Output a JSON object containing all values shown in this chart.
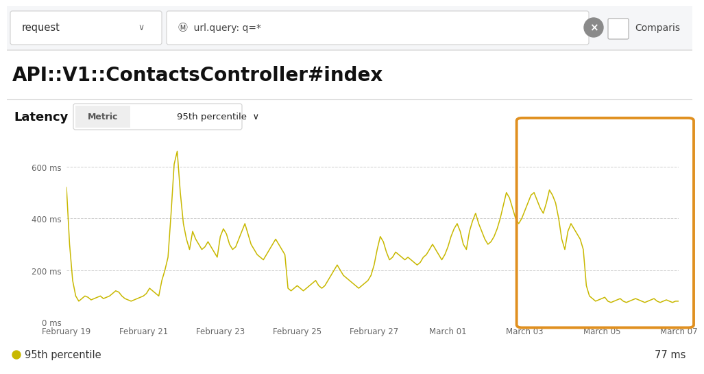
{
  "title": "API::V1::ContactsController#index",
  "legend_label": "95th percentile",
  "legend_value": "77 ms",
  "ylabel_ticks": [
    "0 ms",
    "200 ms",
    "400 ms",
    "600 ms"
  ],
  "ylabel_values": [
    0,
    200,
    400,
    600
  ],
  "ylim": [
    0,
    730
  ],
  "x_tick_labels": [
    "February 19",
    "February 21",
    "February 23",
    "February 25",
    "February 27",
    "March 01",
    "March 03",
    "March 05",
    "March 07"
  ],
  "background_color": "#ffffff",
  "line_color": "#c8b800",
  "grid_color": "#cccccc",
  "highlight_box_color": "#e09020",
  "filter_bg": "#f5f6f8",
  "data_y": [
    520,
    300,
    160,
    100,
    80,
    90,
    100,
    95,
    85,
    90,
    95,
    100,
    90,
    95,
    100,
    110,
    120,
    115,
    100,
    90,
    85,
    80,
    85,
    90,
    95,
    100,
    110,
    130,
    120,
    110,
    100,
    160,
    200,
    250,
    420,
    610,
    660,
    500,
    380,
    320,
    280,
    350,
    320,
    300,
    280,
    290,
    310,
    290,
    270,
    250,
    330,
    360,
    340,
    300,
    280,
    290,
    320,
    350,
    380,
    340,
    300,
    280,
    260,
    250,
    240,
    260,
    280,
    300,
    320,
    300,
    280,
    260,
    130,
    120,
    130,
    140,
    130,
    120,
    130,
    140,
    150,
    160,
    140,
    130,
    140,
    160,
    180,
    200,
    220,
    200,
    180,
    170,
    160,
    150,
    140,
    130,
    140,
    150,
    160,
    180,
    220,
    280,
    330,
    310,
    270,
    240,
    250,
    270,
    260,
    250,
    240,
    250,
    240,
    230,
    220,
    230,
    250,
    260,
    280,
    300,
    280,
    260,
    240,
    260,
    290,
    330,
    360,
    380,
    350,
    300,
    280,
    350,
    390,
    420,
    380,
    350,
    320,
    300,
    310,
    330,
    360,
    400,
    450,
    500,
    480,
    440,
    400,
    380,
    400,
    430,
    460,
    490,
    500,
    470,
    440,
    420,
    460,
    510,
    490,
    460,
    400,
    320,
    280,
    350,
    380,
    360,
    340,
    320,
    280,
    140,
    100,
    90,
    80,
    85,
    90,
    95,
    80,
    75,
    80,
    85,
    90,
    80,
    75,
    80,
    85,
    90,
    85,
    80,
    75,
    80,
    85,
    90,
    80,
    75,
    80,
    85,
    80,
    75,
    80,
    80
  ]
}
